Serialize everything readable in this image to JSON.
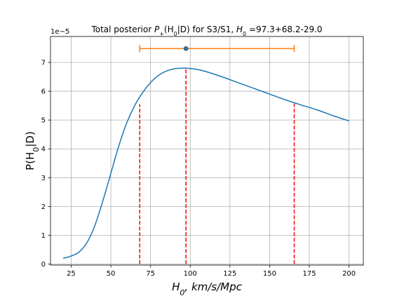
{
  "chart_data": {
    "type": "line",
    "title_parts": {
      "prefix": "Total posterior ",
      "p_sub": "+",
      "p_arg": "(H",
      "p_arg_sub": "0",
      "p_arg_end": "|D)",
      "middle": " for S3/S1, ",
      "h0_label": "H",
      "h0_sub": "0",
      "suffix": " =97.3+68.2-29.0"
    },
    "xlabel_parts": {
      "main": "H",
      "sub": "0",
      "rest": ", km/s/Mpc"
    },
    "ylabel_parts": {
      "pre": "P(H",
      "sub": "0",
      "post": "|D)"
    },
    "offset_text": "1e−5",
    "xlim": [
      12,
      209
    ],
    "ylim": [
      -0.035,
      7.9
    ],
    "x_ticks": [
      25,
      50,
      75,
      100,
      125,
      150,
      175,
      200
    ],
    "y_ticks": [
      0,
      1,
      2,
      3,
      4,
      5,
      6,
      7
    ],
    "grid": true,
    "series": [
      {
        "color": "#1f77b4",
        "x": [
          20,
          25,
          30,
          35,
          40,
          45,
          50,
          55,
          60,
          65,
          70,
          75,
          80,
          85,
          90,
          95,
          100,
          105,
          110,
          120,
          130,
          140,
          150,
          160,
          170,
          180,
          190,
          200
        ],
        "y": [
          0.2,
          0.28,
          0.42,
          0.75,
          1.35,
          2.2,
          3.15,
          4.1,
          4.9,
          5.5,
          5.95,
          6.3,
          6.55,
          6.7,
          6.78,
          6.8,
          6.79,
          6.75,
          6.68,
          6.5,
          6.3,
          6.1,
          5.9,
          5.7,
          5.52,
          5.35,
          5.15,
          4.97
        ]
      }
    ],
    "vlines": [
      {
        "x": 68.2,
        "ymax": 5.55,
        "color": "#ff0000",
        "style": "dashed"
      },
      {
        "x": 97.3,
        "ymax": 6.8,
        "color": "#ff0000",
        "style": "dashed"
      },
      {
        "x": 165.5,
        "ymax": 5.57,
        "color": "#ff0000",
        "style": "dashed"
      }
    ],
    "errorbar": {
      "x": 97.3,
      "y": 7.48,
      "xmin": 68.2,
      "xmax": 165.5,
      "color": "#ff7f0e",
      "marker_color": "#1f77b4"
    }
  }
}
